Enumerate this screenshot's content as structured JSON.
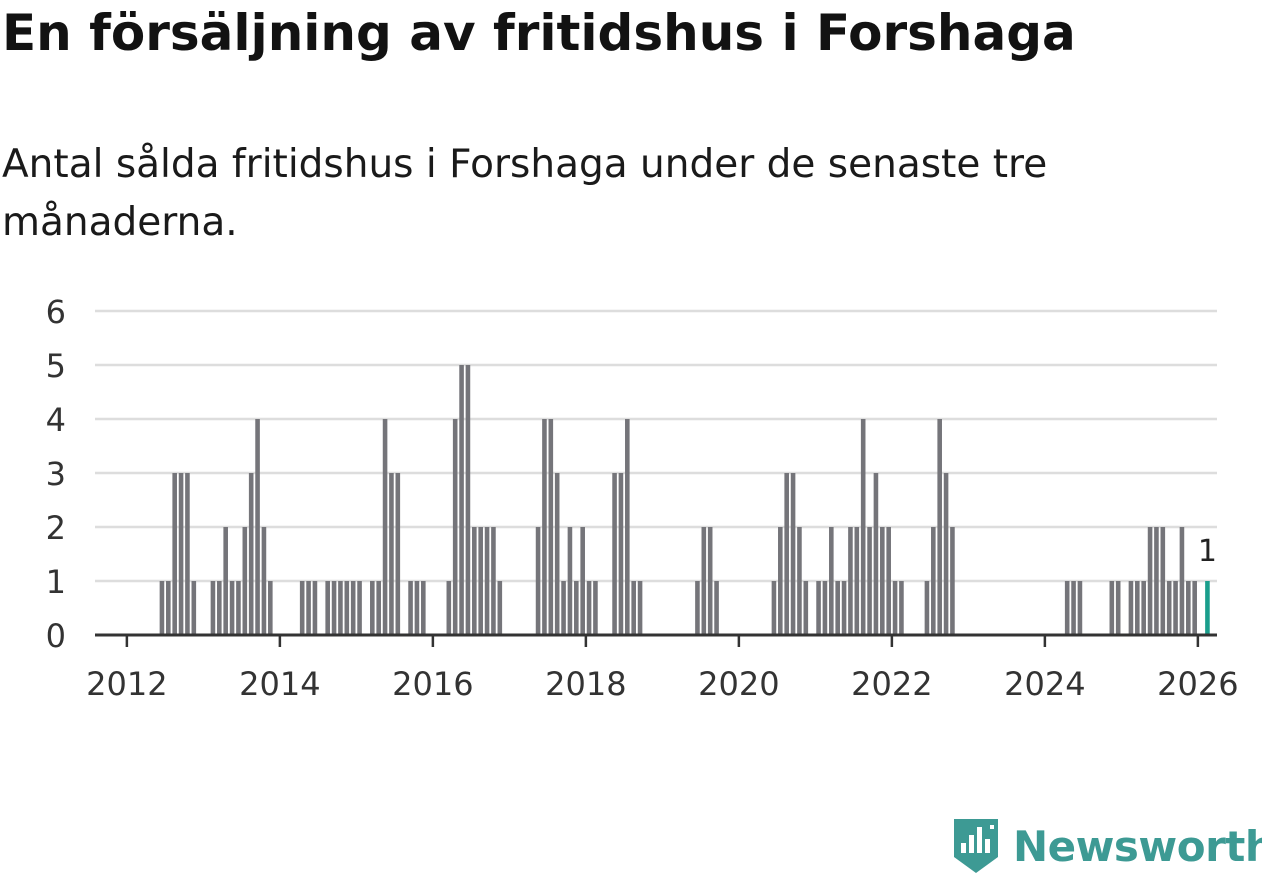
{
  "title": "En försäljning av fritidshus i Forshaga",
  "subtitle": "Antal sålda fritidshus i Forshaga under de senaste tre månaderna.",
  "brand": "Newsworthy",
  "colors": {
    "bar": "#75757a",
    "highlight": "#1a9e8c",
    "grid": "#dddddd",
    "axis": "#333333",
    "brand": "#3d9a94"
  },
  "icons": {
    "logo": "newsworthy-logo-icon"
  },
  "chart_data": {
    "type": "bar",
    "title": "En försäljning av fritidshus i Forshaga",
    "subtitle": "Antal sålda fritidshus i Forshaga under de senaste tre månaderna.",
    "xlabel": "",
    "ylabel": "",
    "ylim": [
      0,
      6
    ],
    "y_ticks": [
      0,
      1,
      2,
      3,
      4,
      5,
      6
    ],
    "x_ticks": [
      "2012",
      "2014",
      "2016",
      "2018",
      "2020",
      "2022",
      "2024",
      "2026"
    ],
    "x_start": "2011-08",
    "x_end": "2026-04",
    "grid": true,
    "highlight_label": "1",
    "series": [
      {
        "name": "Antal sålda fritidshus",
        "values": [
          {
            "month": "2012-06",
            "value": 1
          },
          {
            "month": "2012-07",
            "value": 1
          },
          {
            "month": "2012-08",
            "value": 3
          },
          {
            "month": "2012-09",
            "value": 3
          },
          {
            "month": "2012-10",
            "value": 3
          },
          {
            "month": "2012-11",
            "value": 1
          },
          {
            "month": "2013-02",
            "value": 1
          },
          {
            "month": "2013-03",
            "value": 1
          },
          {
            "month": "2013-04",
            "value": 2
          },
          {
            "month": "2013-05",
            "value": 1
          },
          {
            "month": "2013-06",
            "value": 1
          },
          {
            "month": "2013-07",
            "value": 2
          },
          {
            "month": "2013-08",
            "value": 3
          },
          {
            "month": "2013-09",
            "value": 4
          },
          {
            "month": "2013-10",
            "value": 2
          },
          {
            "month": "2013-11",
            "value": 1
          },
          {
            "month": "2014-04",
            "value": 1
          },
          {
            "month": "2014-05",
            "value": 1
          },
          {
            "month": "2014-06",
            "value": 1
          },
          {
            "month": "2014-08",
            "value": 1
          },
          {
            "month": "2014-09",
            "value": 1
          },
          {
            "month": "2014-10",
            "value": 1
          },
          {
            "month": "2014-11",
            "value": 1
          },
          {
            "month": "2014-12",
            "value": 1
          },
          {
            "month": "2015-01",
            "value": 1
          },
          {
            "month": "2015-03",
            "value": 1
          },
          {
            "month": "2015-04",
            "value": 1
          },
          {
            "month": "2015-05",
            "value": 4
          },
          {
            "month": "2015-06",
            "value": 3
          },
          {
            "month": "2015-07",
            "value": 3
          },
          {
            "month": "2015-09",
            "value": 1
          },
          {
            "month": "2015-10",
            "value": 1
          },
          {
            "month": "2015-11",
            "value": 1
          },
          {
            "month": "2016-03",
            "value": 1
          },
          {
            "month": "2016-04",
            "value": 4
          },
          {
            "month": "2016-05",
            "value": 5
          },
          {
            "month": "2016-06",
            "value": 5
          },
          {
            "month": "2016-07",
            "value": 2
          },
          {
            "month": "2016-08",
            "value": 2
          },
          {
            "month": "2016-09",
            "value": 2
          },
          {
            "month": "2016-10",
            "value": 2
          },
          {
            "month": "2016-11",
            "value": 1
          },
          {
            "month": "2017-05",
            "value": 2
          },
          {
            "month": "2017-06",
            "value": 4
          },
          {
            "month": "2017-07",
            "value": 4
          },
          {
            "month": "2017-08",
            "value": 3
          },
          {
            "month": "2017-09",
            "value": 1
          },
          {
            "month": "2017-10",
            "value": 2
          },
          {
            "month": "2017-11",
            "value": 1
          },
          {
            "month": "2017-12",
            "value": 2
          },
          {
            "month": "2018-01",
            "value": 1
          },
          {
            "month": "2018-02",
            "value": 1
          },
          {
            "month": "2018-05",
            "value": 3
          },
          {
            "month": "2018-06",
            "value": 3
          },
          {
            "month": "2018-07",
            "value": 4
          },
          {
            "month": "2018-08",
            "value": 1
          },
          {
            "month": "2018-09",
            "value": 1
          },
          {
            "month": "2019-06",
            "value": 1
          },
          {
            "month": "2019-07",
            "value": 2
          },
          {
            "month": "2019-08",
            "value": 2
          },
          {
            "month": "2019-09",
            "value": 1
          },
          {
            "month": "2020-06",
            "value": 1
          },
          {
            "month": "2020-07",
            "value": 2
          },
          {
            "month": "2020-08",
            "value": 3
          },
          {
            "month": "2020-09",
            "value": 3
          },
          {
            "month": "2020-10",
            "value": 2
          },
          {
            "month": "2020-11",
            "value": 1
          },
          {
            "month": "2021-01",
            "value": 1
          },
          {
            "month": "2021-02",
            "value": 1
          },
          {
            "month": "2021-03",
            "value": 2
          },
          {
            "month": "2021-04",
            "value": 1
          },
          {
            "month": "2021-05",
            "value": 1
          },
          {
            "month": "2021-06",
            "value": 2
          },
          {
            "month": "2021-07",
            "value": 2
          },
          {
            "month": "2021-08",
            "value": 4
          },
          {
            "month": "2021-09",
            "value": 2
          },
          {
            "month": "2021-10",
            "value": 3
          },
          {
            "month": "2021-11",
            "value": 2
          },
          {
            "month": "2021-12",
            "value": 2
          },
          {
            "month": "2022-01",
            "value": 1
          },
          {
            "month": "2022-02",
            "value": 1
          },
          {
            "month": "2022-06",
            "value": 1
          },
          {
            "month": "2022-07",
            "value": 2
          },
          {
            "month": "2022-08",
            "value": 4
          },
          {
            "month": "2022-09",
            "value": 3
          },
          {
            "month": "2022-10",
            "value": 2
          },
          {
            "month": "2024-04",
            "value": 1
          },
          {
            "month": "2024-05",
            "value": 1
          },
          {
            "month": "2024-06",
            "value": 1
          },
          {
            "month": "2024-11",
            "value": 1
          },
          {
            "month": "2024-12",
            "value": 1
          },
          {
            "month": "2025-02",
            "value": 1
          },
          {
            "month": "2025-03",
            "value": 1
          },
          {
            "month": "2025-04",
            "value": 1
          },
          {
            "month": "2025-05",
            "value": 2
          },
          {
            "month": "2025-06",
            "value": 2
          },
          {
            "month": "2025-07",
            "value": 2
          },
          {
            "month": "2025-08",
            "value": 1
          },
          {
            "month": "2025-09",
            "value": 1
          },
          {
            "month": "2025-10",
            "value": 2
          },
          {
            "month": "2025-11",
            "value": 1
          },
          {
            "month": "2025-12",
            "value": 1
          },
          {
            "month": "2026-02",
            "value": 1,
            "highlight": true
          }
        ]
      }
    ]
  }
}
